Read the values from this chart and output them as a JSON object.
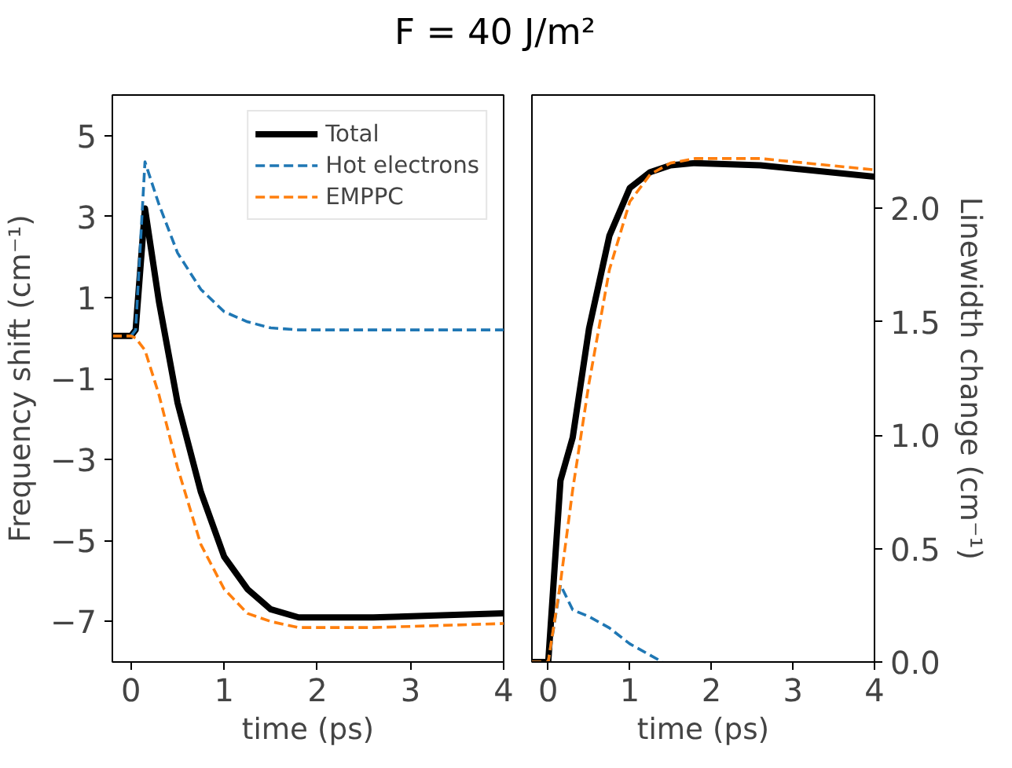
{
  "chart_data": [
    {
      "type": "line",
      "title": "F = 40 J/m²",
      "xlabel": "time (ps)",
      "ylabel": "Frequency shift (cm⁻¹)",
      "xlim": [
        -0.2,
        4
      ],
      "ylim": [
        -8,
        6
      ],
      "xticks": [
        0,
        1,
        2,
        3,
        4
      ],
      "yticks": [
        5,
        3,
        1,
        -1,
        -3,
        -5,
        -7
      ],
      "grid": false,
      "legend": "top right",
      "marker": "none",
      "series": [
        {
          "name": "Total",
          "color": "#000000",
          "line_style": "solid",
          "x": [
            -0.2,
            0,
            0.05,
            0.15,
            0.3,
            0.5,
            0.75,
            1.0,
            1.25,
            1.5,
            1.8,
            2.6,
            4
          ],
          "values": [
            0.05,
            0.05,
            0.2,
            3.2,
            0.9,
            -1.6,
            -3.8,
            -5.4,
            -6.2,
            -6.7,
            -6.9,
            -6.9,
            -6.8
          ]
        },
        {
          "name": "Hot electrons",
          "color": "#1f77b4",
          "line_style": "dashed",
          "x": [
            0,
            0.05,
            0.15,
            0.3,
            0.5,
            0.75,
            1.0,
            1.25,
            1.5,
            1.8,
            2.6,
            4
          ],
          "values": [
            0.05,
            0.2,
            4.35,
            3.3,
            2.1,
            1.2,
            0.65,
            0.4,
            0.25,
            0.2,
            0.2,
            0.2
          ]
        },
        {
          "name": "EMPPC",
          "color": "#ff7f0e",
          "line_style": "dashed",
          "x": [
            -0.2,
            0,
            0.05,
            0.15,
            0.3,
            0.5,
            0.75,
            1.0,
            1.25,
            1.5,
            1.8,
            2.6,
            4
          ],
          "values": [
            0.05,
            0.05,
            0,
            -0.3,
            -1.4,
            -3.2,
            -5.1,
            -6.2,
            -6.8,
            -7.0,
            -7.15,
            -7.15,
            -7.05
          ]
        }
      ]
    },
    {
      "type": "line",
      "xlabel": "time (ps)",
      "ylabel": "Linewidth change (cm⁻¹)",
      "xlim": [
        -0.2,
        4
      ],
      "ylim": [
        0,
        2.5
      ],
      "xticks": [
        0,
        1,
        2,
        3,
        4
      ],
      "yticks": [
        {
          "value": 0,
          "label": "0.0"
        },
        {
          "value": 0.5,
          "label": "0.5"
        },
        {
          "value": 1,
          "label": "1.0"
        },
        {
          "value": 1.5,
          "label": "1.5"
        },
        {
          "value": 2,
          "label": "2.0"
        }
      ],
      "grid": false,
      "marker": "none",
      "series": [
        {
          "color": "#000000",
          "line_style": "solid",
          "x": [
            -0.2,
            0,
            0.15,
            0.3,
            0.5,
            0.75,
            1.0,
            1.25,
            1.5,
            1.8,
            2.6,
            4
          ],
          "values": [
            0,
            0,
            0.8,
            0.99,
            1.47,
            1.88,
            2.09,
            2.16,
            2.19,
            2.2,
            2.19,
            2.14
          ]
        },
        {
          "color": "#1f77b4",
          "line_style": "dashed",
          "x": [
            -0.2,
            0,
            0.15,
            0.3,
            0.5,
            0.75,
            1.0,
            1.25,
            1.4
          ],
          "values": [
            0,
            0,
            0.34,
            0.23,
            0.2,
            0.15,
            0.08,
            0.03,
            0
          ]
        },
        {
          "color": "#ff7f0e",
          "line_style": "dashed",
          "x": [
            -0.2,
            0,
            0.15,
            0.3,
            0.5,
            0.75,
            1.0,
            1.25,
            1.5,
            1.8,
            2.6,
            4
          ],
          "values": [
            0,
            0,
            0.35,
            0.76,
            1.23,
            1.73,
            2.03,
            2.15,
            2.2,
            2.22,
            2.22,
            2.17
          ]
        }
      ]
    }
  ]
}
